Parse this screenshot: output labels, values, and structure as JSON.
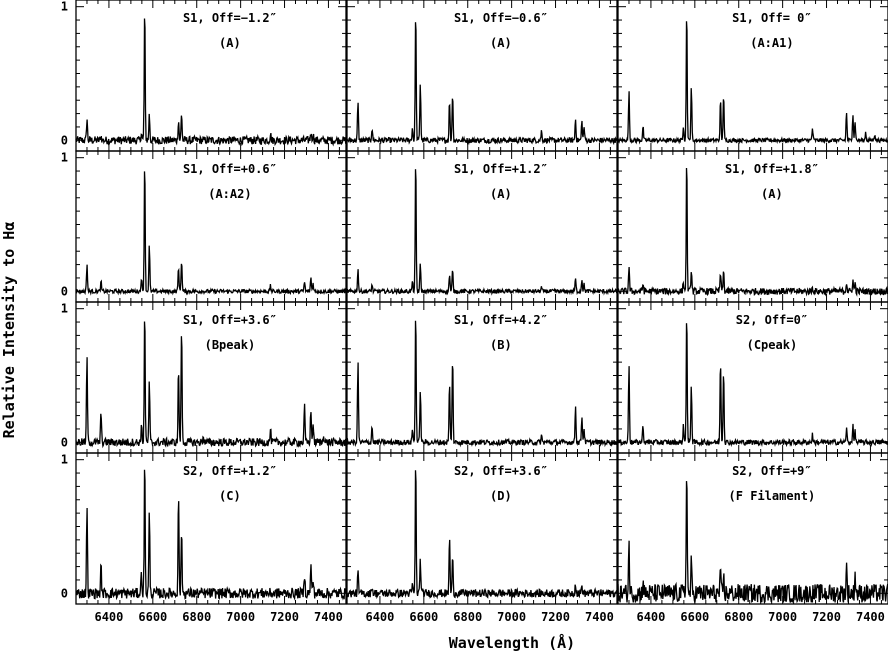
{
  "chart_data": {
    "type": "line",
    "xlabel": "Wavelength (Å)",
    "ylabel": "Relative Intensity to Hα",
    "xlim": [
      6250,
      7480
    ],
    "ylim": [
      -0.08,
      1.05
    ],
    "x_ticks": [
      6400,
      6600,
      6800,
      7000,
      7200,
      7400
    ],
    "x_tick_labels": [
      "6400",
      "6600",
      "6800",
      "7000",
      "7200",
      "7400"
    ],
    "y_ticks": [
      0,
      1
    ],
    "y_tick_labels": [
      "0",
      "1"
    ],
    "grid": false,
    "noise_baseline": 0,
    "panels": [
      {
        "title": "S1, Off=−1.2″",
        "sublabel": "(A)",
        "noise": 0.03,
        "lines": [
          [
            6300,
            0.16
          ],
          [
            6364,
            0.03
          ],
          [
            6548,
            0.06
          ],
          [
            6563,
            1.0
          ],
          [
            6584,
            0.19
          ],
          [
            6717,
            0.15
          ],
          [
            6731,
            0.2
          ],
          [
            7136,
            0.05
          ],
          [
            7320,
            0.06
          ],
          [
            7330,
            0.05
          ]
        ]
      },
      {
        "title": "S1, Off=−0.6″",
        "sublabel": "(A)",
        "noise": 0.02,
        "lines": [
          [
            6300,
            0.28
          ],
          [
            6364,
            0.09
          ],
          [
            6548,
            0.09
          ],
          [
            6563,
            1.0
          ],
          [
            6584,
            0.43
          ],
          [
            6717,
            0.3
          ],
          [
            6731,
            0.36
          ],
          [
            7136,
            0.07
          ],
          [
            7291,
            0.16
          ],
          [
            7320,
            0.14
          ],
          [
            7330,
            0.1
          ]
        ]
      },
      {
        "title": "S1, Off= 0″",
        "sublabel": "(A:A1)",
        "noise": 0.015,
        "lines": [
          [
            6300,
            0.36
          ],
          [
            6364,
            0.1
          ],
          [
            6548,
            0.11
          ],
          [
            6563,
            1.0
          ],
          [
            6584,
            0.4
          ],
          [
            6717,
            0.3
          ],
          [
            6731,
            0.35
          ],
          [
            7136,
            0.09
          ],
          [
            7291,
            0.21
          ],
          [
            7320,
            0.2
          ],
          [
            7330,
            0.14
          ],
          [
            7378,
            0.06
          ],
          [
            7420,
            0.05
          ]
        ]
      },
      {
        "title": "S1, Off=+0.6″",
        "sublabel": "(A:A2)",
        "noise": 0.015,
        "lines": [
          [
            6300,
            0.2
          ],
          [
            6364,
            0.07
          ],
          [
            6548,
            0.1
          ],
          [
            6563,
            1.0
          ],
          [
            6584,
            0.34
          ],
          [
            6717,
            0.18
          ],
          [
            6731,
            0.24
          ],
          [
            7136,
            0.04
          ],
          [
            7291,
            0.07
          ],
          [
            7320,
            0.1
          ],
          [
            7330,
            0.06
          ]
        ]
      },
      {
        "title": "S1, Off=+1.2″",
        "sublabel": "(A)",
        "noise": 0.015,
        "lines": [
          [
            6300,
            0.16
          ],
          [
            6364,
            0.05
          ],
          [
            6548,
            0.07
          ],
          [
            6563,
            1.0
          ],
          [
            6584,
            0.2
          ],
          [
            6717,
            0.13
          ],
          [
            6731,
            0.16
          ],
          [
            7136,
            0.03
          ],
          [
            7291,
            0.09
          ],
          [
            7320,
            0.09
          ],
          [
            7330,
            0.05
          ]
        ]
      },
      {
        "title": "S1, Off=+1.8″",
        "sublabel": "(A)",
        "noise": 0.025,
        "lines": [
          [
            6300,
            0.18
          ],
          [
            6364,
            0.06
          ],
          [
            6548,
            0.07
          ],
          [
            6563,
            1.0
          ],
          [
            6584,
            0.16
          ],
          [
            6717,
            0.14
          ],
          [
            6731,
            0.15
          ],
          [
            7136,
            0.03
          ],
          [
            7291,
            0.07
          ],
          [
            7320,
            0.08
          ],
          [
            7330,
            0.06
          ]
        ]
      },
      {
        "title": "S1, Off=+3.6″",
        "sublabel": "(Bpeak)",
        "noise": 0.03,
        "lines": [
          [
            6300,
            0.63
          ],
          [
            6364,
            0.22
          ],
          [
            6548,
            0.12
          ],
          [
            6563,
            1.0
          ],
          [
            6584,
            0.44
          ],
          [
            6717,
            0.56
          ],
          [
            6731,
            0.88
          ],
          [
            6830,
            0.05
          ],
          [
            7136,
            0.1
          ],
          [
            7291,
            0.27
          ],
          [
            7320,
            0.24
          ],
          [
            7330,
            0.14
          ],
          [
            7378,
            0.07
          ]
        ]
      },
      {
        "title": "S1, Off=+4.2″",
        "sublabel": "(B)",
        "noise": 0.02,
        "lines": [
          [
            6300,
            0.6
          ],
          [
            6364,
            0.12
          ],
          [
            6548,
            0.1
          ],
          [
            6563,
            1.0
          ],
          [
            6584,
            0.4
          ],
          [
            6717,
            0.45
          ],
          [
            6731,
            0.65
          ],
          [
            7136,
            0.05
          ],
          [
            7291,
            0.27
          ],
          [
            7320,
            0.2
          ],
          [
            7330,
            0.1
          ]
        ]
      },
      {
        "title": "S2, Off=0″",
        "sublabel": "(Cpeak)",
        "noise": 0.02,
        "lines": [
          [
            6300,
            0.58
          ],
          [
            6364,
            0.13
          ],
          [
            6548,
            0.12
          ],
          [
            6563,
            1.0
          ],
          [
            6584,
            0.44
          ],
          [
            6717,
            0.63
          ],
          [
            6731,
            0.56
          ],
          [
            7136,
            0.06
          ],
          [
            7291,
            0.1
          ],
          [
            7320,
            0.12
          ],
          [
            7330,
            0.08
          ]
        ]
      },
      {
        "title": "S2, Off=+1.2″",
        "sublabel": "(C)",
        "noise": 0.04,
        "lines": [
          [
            6300,
            0.64
          ],
          [
            6364,
            0.2
          ],
          [
            6548,
            0.15
          ],
          [
            6563,
            1.0
          ],
          [
            6584,
            0.6
          ],
          [
            6717,
            0.73
          ],
          [
            6731,
            0.47
          ],
          [
            7291,
            0.15
          ],
          [
            7320,
            0.2
          ],
          [
            7330,
            0.1
          ]
        ]
      },
      {
        "title": "S2, Off=+3.6″",
        "sublabel": "(D)",
        "noise": 0.03,
        "lines": [
          [
            6300,
            0.15
          ],
          [
            6364,
            0.06
          ],
          [
            6548,
            0.06
          ],
          [
            6563,
            1.0
          ],
          [
            6584,
            0.25
          ],
          [
            6717,
            0.42
          ],
          [
            6731,
            0.27
          ],
          [
            7291,
            0.08
          ],
          [
            7320,
            0.06
          ]
        ]
      },
      {
        "title": "S2, Off=+9″",
        "sublabel": "(F Filament)",
        "noise": 0.07,
        "lines": [
          [
            6300,
            0.37
          ],
          [
            6364,
            0.1
          ],
          [
            6563,
            1.0
          ],
          [
            6584,
            0.22
          ],
          [
            6717,
            0.13
          ],
          [
            6731,
            0.12
          ],
          [
            7291,
            0.2
          ],
          [
            7330,
            0.15
          ]
        ]
      }
    ]
  }
}
